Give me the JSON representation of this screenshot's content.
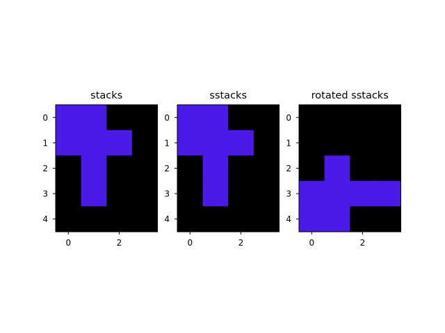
{
  "chart_data": [
    {
      "type": "heatmap",
      "title": "stacks",
      "rows": 5,
      "cols": 4,
      "x_ticks": [
        "0",
        "2"
      ],
      "y_ticks": [
        "0",
        "1",
        "2",
        "3",
        "4"
      ],
      "colors": {
        "on": "#4c1ae8",
        "off": "#000000"
      },
      "cells": [
        [
          1,
          1,
          0,
          0
        ],
        [
          1,
          1,
          1,
          0
        ],
        [
          0,
          1,
          0,
          0
        ],
        [
          0,
          1,
          0,
          0
        ],
        [
          0,
          0,
          0,
          0
        ]
      ]
    },
    {
      "type": "heatmap",
      "title": "sstacks",
      "rows": 5,
      "cols": 4,
      "x_ticks": [
        "0",
        "2"
      ],
      "y_ticks": [
        "0",
        "1",
        "2",
        "3",
        "4"
      ],
      "colors": {
        "on": "#4c1ae8",
        "off": "#000000"
      },
      "cells": [
        [
          1,
          1,
          0,
          0
        ],
        [
          1,
          1,
          1,
          0
        ],
        [
          0,
          1,
          0,
          0
        ],
        [
          0,
          1,
          0,
          0
        ],
        [
          0,
          0,
          0,
          0
        ]
      ]
    },
    {
      "type": "heatmap",
      "title": "rotated sstacks",
      "rows": 5,
      "cols": 4,
      "x_ticks": [
        "0",
        "2"
      ],
      "y_ticks": [
        "0",
        "1",
        "2",
        "3",
        "4"
      ],
      "colors": {
        "on": "#4c1ae8",
        "off": "#000000"
      },
      "cells": [
        [
          0,
          0,
          0,
          0
        ],
        [
          0,
          0,
          0,
          0
        ],
        [
          0,
          1,
          0,
          0
        ],
        [
          1,
          1,
          1,
          1
        ],
        [
          1,
          1,
          0,
          0
        ]
      ]
    }
  ]
}
